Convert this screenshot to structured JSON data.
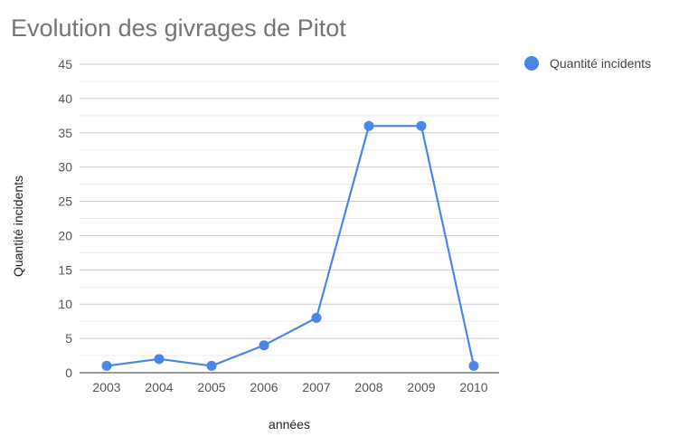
{
  "chart_data": {
    "type": "line",
    "title": "Evolution des givrages de Pitot",
    "xlabel": "années",
    "ylabel": "Quantité incidents",
    "categories": [
      "2003",
      "2004",
      "2005",
      "2006",
      "2007",
      "2008",
      "2009",
      "2010"
    ],
    "series": [
      {
        "name": "Quantité incidents",
        "values": [
          1,
          2,
          1,
          4,
          8,
          36,
          36,
          1
        ],
        "color": "#4a86e8"
      }
    ],
    "ylim": [
      0,
      45
    ],
    "yticks": [
      "0",
      "5",
      "10",
      "15",
      "20",
      "25",
      "30",
      "35",
      "40",
      "45"
    ],
    "grid": true,
    "legend_position": "right"
  }
}
